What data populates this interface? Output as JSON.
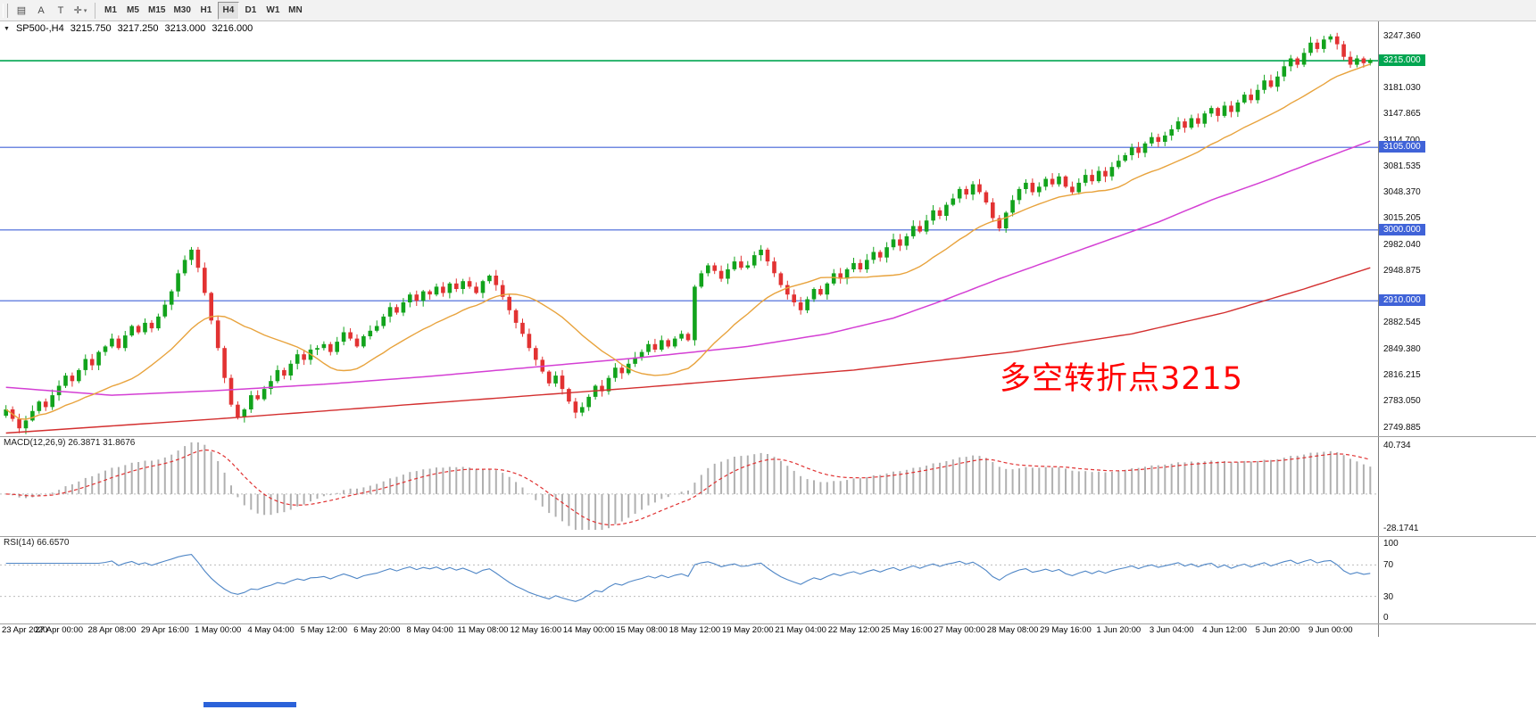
{
  "toolbar": {
    "icons": [
      {
        "name": "chart-list-icon",
        "glyph": "▤",
        "caret": ""
      },
      {
        "name": "font-a-icon",
        "glyph": "A",
        "caret": ""
      },
      {
        "name": "text-tool-icon",
        "glyph": "T",
        "caret": ""
      },
      {
        "name": "crosshair-tool-icon",
        "glyph": "✛",
        "caret": "▾"
      }
    ],
    "timeframes": [
      "M1",
      "M5",
      "M15",
      "M30",
      "H1",
      "H4",
      "D1",
      "W1",
      "MN"
    ],
    "active_timeframe": "H4"
  },
  "quote": {
    "menu_icon": "▼",
    "symbol_period": "SP500-,H4",
    "open": "3215.750",
    "high": "3217.250",
    "low": "3213.000",
    "close": "3216.000"
  },
  "annotation": {
    "text": "多空转折点3215"
  },
  "colors": {
    "up": "#12a31c",
    "down": "#e23232",
    "hline_green": "#00a651",
    "hline_blue": "#4063d8",
    "ma_fast": "#e8a33d",
    "ma_mid": "#d43fd4",
    "ma_slow": "#d32f2f",
    "macd_hist": "#b0b0b0",
    "macd_signal": "#e03131",
    "rsi_line": "#4f86c6",
    "level_dash": "#bcbcbc",
    "annotation": "#ff0000"
  },
  "price_axis": {
    "ticks": [
      {
        "v": 3247.36,
        "t": "3247.360"
      },
      {
        "v": 3181.03,
        "t": "3181.030"
      },
      {
        "v": 3147.865,
        "t": "3147.865"
      },
      {
        "v": 3114.7,
        "t": "3114.700"
      },
      {
        "v": 3081.535,
        "t": "3081.535"
      },
      {
        "v": 3048.37,
        "t": "3048.370"
      },
      {
        "v": 3015.205,
        "t": "3015.205"
      },
      {
        "v": 2982.04,
        "t": "2982.040"
      },
      {
        "v": 2948.875,
        "t": "2948.875"
      },
      {
        "v": 2882.545,
        "t": "2882.545"
      },
      {
        "v": 2849.38,
        "t": "2849.380"
      },
      {
        "v": 2816.215,
        "t": "2816.215"
      },
      {
        "v": 2783.05,
        "t": "2783.050"
      },
      {
        "v": 2749.885,
        "t": "2749.885"
      }
    ],
    "boxes": [
      {
        "v": 3215.0,
        "t": "3215.000",
        "color": "#00a651"
      },
      {
        "v": 3105.0,
        "t": "3105.000",
        "color": "#4063d8"
      },
      {
        "v": 3000.0,
        "t": "3000.000",
        "color": "#4063d8"
      },
      {
        "v": 2910.0,
        "t": "2910.000",
        "color": "#4063d8"
      }
    ]
  },
  "indicators": {
    "macd": {
      "label": "MACD(12,26,9) 26.3871 31.8676",
      "fast": 12,
      "slow": 26,
      "signal": 9,
      "macd_value": 26.3871,
      "signal_value": 31.8676,
      "max_label": "40.734",
      "min_label": "-28.1741",
      "scale_max": 40.734,
      "scale_min": -28.1741
    },
    "rsi": {
      "label": "RSI(14) 66.6570",
      "period": 14,
      "value": 66.657,
      "axis_levels": [
        100,
        70,
        30,
        0
      ],
      "dashed_levels": [
        70,
        30
      ]
    }
  },
  "time_axis": {
    "bars_per_label": 8,
    "labels": [
      "23 Apr 2020",
      "27 Apr 00:00",
      "28 Apr 08:00",
      "29 Apr 16:00",
      "1 May 00:00",
      "4 May 04:00",
      "5 May 12:00",
      "6 May 20:00",
      "8 May 04:00",
      "11 May 08:00",
      "12 May 16:00",
      "14 May 00:00",
      "15 May 08:00",
      "18 May 12:00",
      "19 May 20:00",
      "21 May 04:00",
      "22 May 12:00",
      "25 May 16:00",
      "27 May 00:00",
      "28 May 08:00",
      "29 May 16:00",
      "1 Jun 20:00",
      "3 Jun 04:00",
      "4 Jun 12:00",
      "5 Jun 20:00",
      "9 Jun 00:00"
    ]
  },
  "chart_data": {
    "type": "candlestick",
    "symbol": "SP500-",
    "period": "H4",
    "title": "SP500-,H4",
    "current_ohlc": {
      "open": 3215.75,
      "high": 3217.25,
      "low": 3213.0,
      "close": 3216.0
    },
    "price_range": [
      2738,
      3265
    ],
    "hlines": [
      {
        "price": 3215,
        "color_key": "hline_green"
      },
      {
        "price": 3105,
        "color_key": "hline_blue"
      },
      {
        "price": 3000,
        "color_key": "hline_blue"
      },
      {
        "price": 2910,
        "color_key": "hline_blue"
      }
    ],
    "ma_fast_period": 20,
    "ma_mid_waypoints": [
      [
        0,
        2800
      ],
      [
        16,
        2790
      ],
      [
        32,
        2796
      ],
      [
        48,
        2804
      ],
      [
        64,
        2814
      ],
      [
        80,
        2826
      ],
      [
        96,
        2838
      ],
      [
        112,
        2852
      ],
      [
        124,
        2868
      ],
      [
        134,
        2888
      ],
      [
        142,
        2912
      ],
      [
        150,
        2938
      ],
      [
        158,
        2962
      ],
      [
        166,
        2986
      ],
      [
        174,
        3010
      ],
      [
        182,
        3038
      ],
      [
        190,
        3062
      ],
      [
        198,
        3088
      ],
      [
        206,
        3113
      ]
    ],
    "ma_slow_waypoints": [
      [
        0,
        2742
      ],
      [
        32,
        2760
      ],
      [
        64,
        2780
      ],
      [
        96,
        2800
      ],
      [
        128,
        2822
      ],
      [
        152,
        2845
      ],
      [
        170,
        2868
      ],
      [
        184,
        2895
      ],
      [
        196,
        2925
      ],
      [
        206,
        2952
      ]
    ],
    "closes": [
      2772,
      2760,
      2748,
      2758,
      2770,
      2782,
      2775,
      2790,
      2802,
      2815,
      2808,
      2822,
      2836,
      2828,
      2845,
      2852,
      2862,
      2850,
      2866,
      2878,
      2870,
      2882,
      2875,
      2890,
      2905,
      2922,
      2945,
      2962,
      2975,
      2952,
      2920,
      2885,
      2850,
      2812,
      2778,
      2762,
      2772,
      2790,
      2785,
      2798,
      2808,
      2822,
      2815,
      2830,
      2842,
      2835,
      2848,
      2850,
      2855,
      2845,
      2858,
      2870,
      2862,
      2852,
      2865,
      2872,
      2878,
      2890,
      2902,
      2895,
      2908,
      2918,
      2910,
      2922,
      2918,
      2928,
      2920,
      2932,
      2925,
      2935,
      2928,
      2920,
      2935,
      2942,
      2930,
      2915,
      2898,
      2882,
      2868,
      2850,
      2835,
      2820,
      2805,
      2815,
      2798,
      2782,
      2768,
      2775,
      2788,
      2802,
      2795,
      2812,
      2825,
      2818,
      2830,
      2838,
      2845,
      2855,
      2848,
      2860,
      2852,
      2862,
      2868,
      2860,
      2928,
      2945,
      2955,
      2948,
      2938,
      2950,
      2960,
      2952,
      2955,
      2968,
      2975,
      2960,
      2945,
      2930,
      2918,
      2908,
      2898,
      2912,
      2925,
      2918,
      2932,
      2945,
      2938,
      2950,
      2958,
      2950,
      2962,
      2972,
      2965,
      2978,
      2988,
      2980,
      2992,
      3005,
      2998,
      3012,
      3025,
      3018,
      3032,
      3040,
      3052,
      3045,
      3058,
      3048,
      3035,
      3015,
      3002,
      3022,
      3038,
      3052,
      3060,
      3048,
      3055,
      3065,
      3058,
      3068,
      3055,
      3048,
      3060,
      3070,
      3062,
      3075,
      3068,
      3080,
      3088,
      3095,
      3105,
      3098,
      3110,
      3118,
      3112,
      3120,
      3128,
      3138,
      3130,
      3142,
      3135,
      3148,
      3155,
      3145,
      3158,
      3150,
      3162,
      3172,
      3165,
      3178,
      3190,
      3182,
      3195,
      3208,
      3218,
      3210,
      3225,
      3238,
      3230,
      3242,
      3246,
      3236,
      3220,
      3210,
      3218,
      3212,
      3216
    ]
  }
}
